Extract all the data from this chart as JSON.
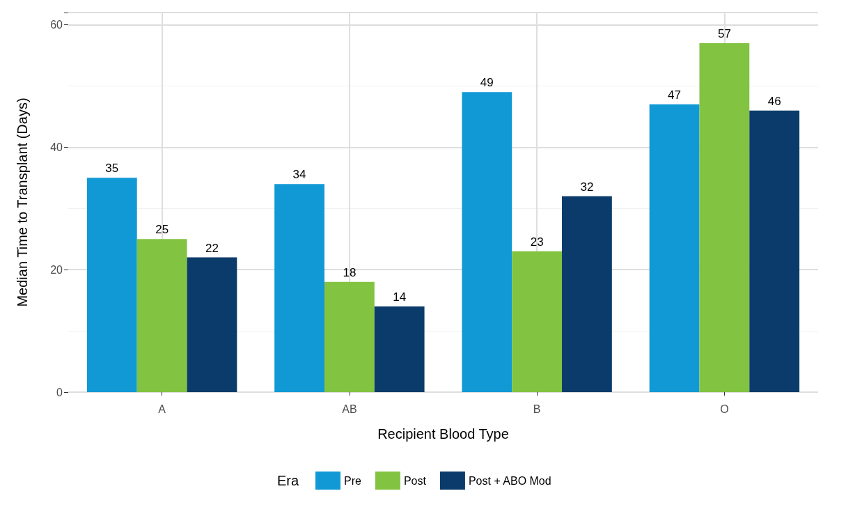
{
  "chart_data": {
    "type": "bar",
    "xlabel": "Recipient Blood Type",
    "ylabel": "Median Time to Transplant (Days)",
    "legend_title": "Era",
    "categories": [
      "A",
      "AB",
      "B",
      "O"
    ],
    "series": [
      {
        "name": "Pre",
        "color": "#1199d6",
        "values": [
          35,
          34,
          49,
          47
        ]
      },
      {
        "name": "Post",
        "color": "#82c341",
        "values": [
          25,
          18,
          23,
          57
        ]
      },
      {
        "name": "Post + ABO Mod",
        "color": "#0b3b6a",
        "values": [
          22,
          14,
          32,
          46
        ]
      }
    ],
    "ylim": [
      0,
      62
    ],
    "yticks": [
      0,
      20,
      40,
      60
    ],
    "grid": true,
    "legend": "bottom",
    "data_labels": true
  }
}
